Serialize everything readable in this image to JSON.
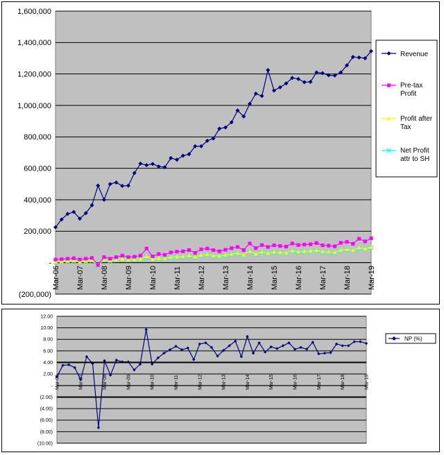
{
  "chart_data": [
    {
      "type": "line",
      "ylim": [
        -200000,
        1600000
      ],
      "yticks": [
        -200000,
        0,
        200000,
        400000,
        600000,
        800000,
        1000000,
        1200000,
        1400000,
        1600000
      ],
      "ytick_labels": [
        "(200,000)",
        "-",
        "200,000",
        "400,000",
        "600,000",
        "800,000",
        "1,000,000",
        "1,200,000",
        "1,400,000",
        "1,600,000"
      ],
      "xtick_labels": [
        "Mar-06",
        "Mar-07",
        "Mar-08",
        "Mar-09",
        "Mar-10",
        "Mar-11",
        "Mar-12",
        "Mar-13",
        "Mar-14",
        "Mar-15",
        "Mar-16",
        "Mar-17",
        "Mar-18",
        "Mar-19"
      ],
      "grid": true,
      "legend_position": "right",
      "series": [
        {
          "name": "Revenue",
          "color": "#000080",
          "marker": "diamond",
          "values": [
            225000,
            275000,
            310000,
            322000,
            280000,
            315000,
            365000,
            490000,
            400000,
            500000,
            510000,
            488000,
            490000,
            570000,
            630000,
            620000,
            628000,
            612000,
            607000,
            665000,
            655000,
            680000,
            690000,
            740000,
            740000,
            775000,
            790000,
            852000,
            860000,
            893000,
            968000,
            930000,
            1010000,
            1075000,
            1060000,
            1225000,
            1095000,
            1115000,
            1140000,
            1175000,
            1168000,
            1148000,
            1150000,
            1210000,
            1205000,
            1192000,
            1190000,
            1210000,
            1255000,
            1308000,
            1305000,
            1300000,
            1345000
          ]
        },
        {
          "name": "Pre-tax Profit",
          "color": "#FF00FF",
          "marker": "square",
          "values": [
            20000,
            22000,
            25000,
            28000,
            20000,
            25000,
            30000,
            -15000,
            35000,
            25000,
            35000,
            45000,
            35000,
            38000,
            45000,
            90000,
            40000,
            55000,
            50000,
            65000,
            70000,
            72000,
            80000,
            62000,
            85000,
            90000,
            80000,
            72000,
            82000,
            92000,
            100000,
            80000,
            122000,
            92000,
            112000,
            100000,
            110000,
            106000,
            102000,
            122000,
            112000,
            115000,
            117000,
            125000,
            110000,
            108000,
            104000,
            126000,
            132000,
            120000,
            152000,
            135000,
            155000
          ]
        },
        {
          "name": "Profit after Tax",
          "color": "#FFFF00",
          "marker": "triangle",
          "values": [
            5000,
            8000,
            10000,
            12000,
            5000,
            10000,
            15000,
            -10000,
            18000,
            12000,
            18000,
            22000,
            18000,
            20000,
            22000,
            40000,
            22000,
            28000,
            26000,
            35000,
            38000,
            40000,
            44000,
            36000,
            48000,
            52000,
            45000,
            42000,
            48000,
            55000,
            60000,
            48000,
            72000,
            55000,
            68000,
            60000,
            68000,
            65000,
            62000,
            75000,
            70000,
            72000,
            74000,
            78000,
            70000,
            68000,
            66000,
            80000,
            85000,
            78000,
            95000,
            88000,
            98000
          ]
        },
        {
          "name": "Net Profit attr to SH",
          "color": "#00FFFF",
          "marker": "x",
          "values": [
            3000,
            6000,
            8000,
            10000,
            3000,
            8000,
            12000,
            -12000,
            15000,
            10000,
            15000,
            19000,
            15000,
            17000,
            19000,
            36000,
            19000,
            25000,
            23000,
            31000,
            34000,
            36000,
            40000,
            32000,
            44000,
            48000,
            41000,
            38000,
            44000,
            51000,
            56000,
            44000,
            68000,
            51000,
            64000,
            56000,
            64000,
            61000,
            58000,
            71000,
            66000,
            68000,
            70000,
            74000,
            66000,
            64000,
            62000,
            76000,
            81000,
            74000,
            91000,
            84000,
            94000
          ]
        }
      ]
    },
    {
      "type": "line",
      "ylim": [
        -10,
        12
      ],
      "yticks": [
        -10,
        -8,
        -6,
        -4,
        -2,
        0,
        2,
        4,
        6,
        8,
        10,
        12
      ],
      "ytick_labels": [
        "(10.00)",
        "(8.00)",
        "(6.00)",
        "(4.00)",
        "(2.00)",
        "-",
        "2.00",
        "4.00",
        "6.00",
        "8.00",
        "10.00",
        "12.00"
      ],
      "xtick_labels": [
        "Mar-06",
        "Mar-07",
        "Mar-08",
        "Mar-09",
        "Mar-10",
        "Mar-11",
        "Mar-12",
        "Mar-13",
        "Mar-14",
        "Mar-15",
        "Mar-16",
        "Mar-17",
        "Mar-18",
        "Mar-19"
      ],
      "grid": true,
      "legend_position": "right",
      "series": [
        {
          "name": "NP (%)",
          "color": "#000080",
          "marker": "diamond",
          "values": [
            1.5,
            3.5,
            3.6,
            3.1,
            1.0,
            5.0,
            3.8,
            -7.3,
            4.3,
            1.8,
            4.4,
            4.1,
            4.1,
            2.7,
            3.7,
            9.7,
            3.7,
            4.8,
            5.6,
            6.2,
            6.8,
            6.2,
            6.5,
            4.5,
            7.2,
            7.4,
            6.6,
            5.1,
            6.1,
            6.9,
            7.7,
            5.0,
            8.5,
            5.6,
            7.4,
            5.8,
            6.7,
            6.4,
            6.9,
            7.4,
            6.3,
            6.6,
            6.3,
            7.5,
            5.5,
            5.6,
            5.7,
            7.2,
            6.9,
            6.9,
            7.6,
            7.6,
            7.3
          ]
        }
      ]
    }
  ]
}
